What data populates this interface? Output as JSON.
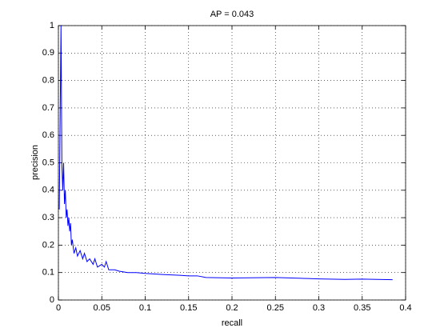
{
  "chart_data": {
    "type": "line",
    "title": "AP = 0.043",
    "x_label": "recall",
    "y_label": "precision",
    "x": [
      0.001,
      0.003,
      0.004,
      0.005,
      0.006,
      0.007,
      0.008,
      0.009,
      0.01,
      0.011,
      0.012,
      0.013,
      0.014,
      0.015,
      0.016,
      0.018,
      0.02,
      0.022,
      0.025,
      0.028,
      0.03,
      0.033,
      0.036,
      0.04,
      0.042,
      0.045,
      0.05,
      0.053,
      0.055,
      0.058,
      0.065,
      0.07,
      0.08,
      0.09,
      0.1,
      0.12,
      0.14,
      0.15,
      0.16,
      0.17,
      0.2,
      0.25,
      0.28,
      0.3,
      0.33,
      0.35,
      0.385
    ],
    "series": [
      {
        "color": "#0000ff",
        "values": [
          0.33,
          1,
          0.5,
          0.4,
          0.5,
          0.35,
          0.4,
          0.3,
          0.33,
          0.27,
          0.3,
          0.25,
          0.28,
          0.2,
          0.22,
          0.17,
          0.19,
          0.16,
          0.18,
          0.15,
          0.17,
          0.14,
          0.15,
          0.13,
          0.15,
          0.12,
          0.13,
          0.12,
          0.14,
          0.11,
          0.11,
          0.105,
          0.1,
          0.1,
          0.097,
          0.093,
          0.09,
          0.088,
          0.088,
          0.082,
          0.08,
          0.082,
          0.079,
          0.077,
          0.075,
          0.076,
          0.074
        ]
      }
    ],
    "xlim": [
      0,
      0.4
    ],
    "xticks": [
      0,
      0.05,
      0.1,
      0.15,
      0.2,
      0.25,
      0.3,
      0.35,
      0.4
    ],
    "ylim": [
      0,
      1
    ],
    "yticks": [
      0,
      0.1,
      0.2,
      0.3,
      0.4,
      0.5,
      0.6,
      0.7,
      0.8,
      0.9,
      1
    ],
    "grid": true
  }
}
